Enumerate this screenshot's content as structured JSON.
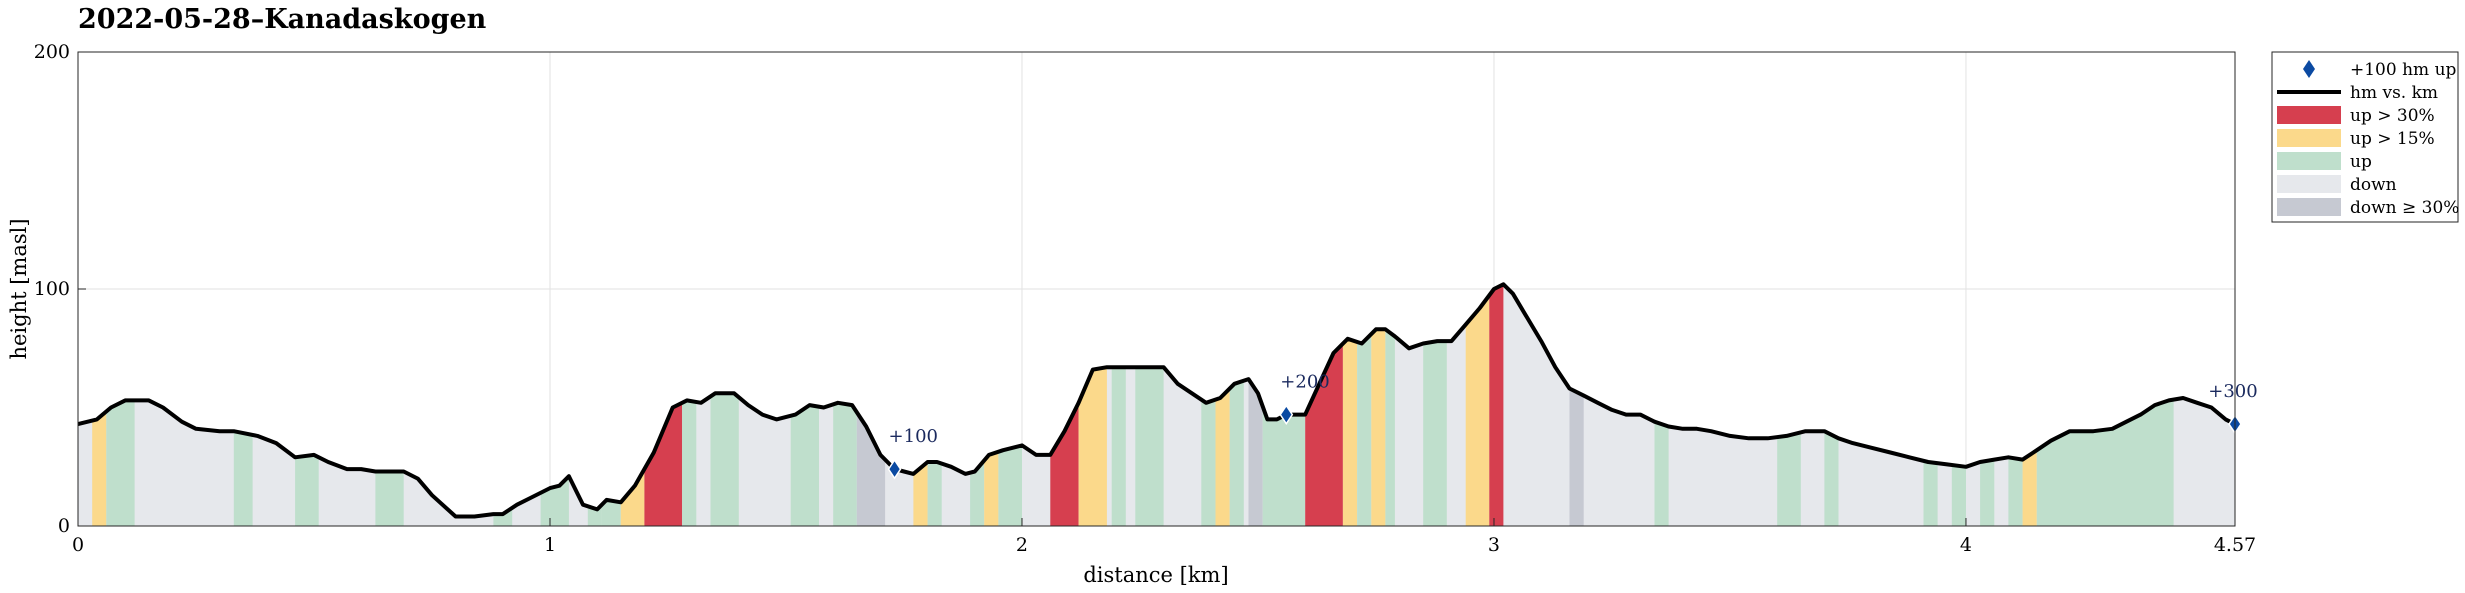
{
  "chart_data": {
    "type": "area",
    "title": "2022-05-28–Kanadaskogen",
    "xlabel": "distance [km]",
    "ylabel": "height [masl]",
    "xlim": [
      0,
      4.57
    ],
    "ylim": [
      0,
      200
    ],
    "x_ticks": [
      "0",
      "1",
      "2",
      "3",
      "4",
      "4.57"
    ],
    "y_ticks": [
      "0",
      "100",
      "200"
    ],
    "grid": true,
    "legend_position": "outside-right",
    "series": [
      {
        "name": "hm vs. km",
        "x": [
          0,
          0.04,
          0.07,
          0.1,
          0.15,
          0.18,
          0.22,
          0.25,
          0.3,
          0.33,
          0.38,
          0.42,
          0.46,
          0.5,
          0.53,
          0.57,
          0.6,
          0.63,
          0.66,
          0.69,
          0.72,
          0.75,
          0.8,
          0.84,
          0.88,
          0.9,
          0.93,
          0.96,
          1.0,
          1.02,
          1.04,
          1.07,
          1.1,
          1.12,
          1.15,
          1.18,
          1.22,
          1.26,
          1.29,
          1.32,
          1.35,
          1.39,
          1.42,
          1.45,
          1.48,
          1.52,
          1.55,
          1.58,
          1.61,
          1.64,
          1.67,
          1.7,
          1.73,
          1.75,
          1.77,
          1.8,
          1.82,
          1.85,
          1.88,
          1.9,
          1.93,
          1.96,
          2.0,
          2.03,
          2.06,
          2.09,
          2.12,
          2.15,
          2.18,
          2.21,
          2.25,
          2.3,
          2.33,
          2.36,
          2.39,
          2.42,
          2.45,
          2.48,
          2.5,
          2.52,
          2.54,
          2.56,
          2.58,
          2.6,
          2.63,
          2.66,
          2.69,
          2.72,
          2.75,
          2.77,
          2.79,
          2.82,
          2.85,
          2.88,
          2.91,
          2.94,
          2.97,
          3.0,
          3.02,
          3.04,
          3.07,
          3.1,
          3.13,
          3.16,
          3.19,
          3.22,
          3.25,
          3.28,
          3.31,
          3.34,
          3.37,
          3.4,
          3.43,
          3.46,
          3.5,
          3.54,
          3.58,
          3.62,
          3.66,
          3.7,
          3.73,
          3.76,
          3.8,
          3.84,
          3.88,
          3.92,
          3.96,
          4.0,
          4.03,
          4.06,
          4.09,
          4.12,
          4.15,
          4.18,
          4.22,
          4.27,
          4.31,
          4.34,
          4.37,
          4.4,
          4.43,
          4.46,
          4.49,
          4.52,
          4.55,
          4.57
        ],
        "y": [
          43,
          45,
          50,
          53,
          53,
          50,
          44,
          41,
          40,
          40,
          38,
          35,
          29,
          30,
          27,
          24,
          24,
          23,
          23,
          23,
          20,
          13,
          4,
          4,
          5,
          5,
          9,
          12,
          16,
          17,
          21,
          9,
          7,
          11,
          10,
          17,
          31,
          50,
          53,
          52,
          56,
          56,
          51,
          47,
          45,
          47,
          51,
          50,
          52,
          51,
          42,
          30,
          24,
          23,
          22,
          27,
          27,
          25,
          22,
          23,
          30,
          32,
          34,
          30,
          30,
          40,
          52,
          66,
          67,
          67,
          67,
          67,
          60,
          56,
          52,
          54,
          60,
          62,
          56,
          45,
          45,
          47,
          47,
          47,
          60,
          73,
          79,
          77,
          83,
          83,
          80,
          75,
          77,
          78,
          78,
          85,
          92,
          100,
          102,
          98,
          88,
          78,
          67,
          58,
          55,
          52,
          49,
          47,
          47,
          44,
          42,
          41,
          41,
          40,
          38,
          37,
          37,
          38,
          40,
          40,
          37,
          35,
          33,
          31,
          29,
          27,
          26,
          25,
          27,
          28,
          29,
          28,
          32,
          36,
          40,
          40,
          41,
          44,
          47,
          51,
          53,
          54,
          52,
          50,
          45,
          43
        ]
      }
    ],
    "bands": [
      {
        "x0": 0.03,
        "x1": 0.06,
        "class": "up > 15%"
      },
      {
        "x0": 0.06,
        "x1": 0.12,
        "class": "up"
      },
      {
        "x0": 0.33,
        "x1": 0.37,
        "class": "up"
      },
      {
        "x0": 0.46,
        "x1": 0.51,
        "class": "up"
      },
      {
        "x0": 0.63,
        "x1": 0.69,
        "class": "up"
      },
      {
        "x0": 0.88,
        "x1": 0.92,
        "class": "up"
      },
      {
        "x0": 0.98,
        "x1": 1.04,
        "class": "up"
      },
      {
        "x0": 1.08,
        "x1": 1.11,
        "class": "up"
      },
      {
        "x0": 1.11,
        "x1": 1.15,
        "class": "up"
      },
      {
        "x0": 1.15,
        "x1": 1.2,
        "class": "up > 15%"
      },
      {
        "x0": 1.2,
        "x1": 1.28,
        "class": "up > 30%"
      },
      {
        "x0": 1.28,
        "x1": 1.31,
        "class": "up"
      },
      {
        "x0": 1.34,
        "x1": 1.4,
        "class": "up"
      },
      {
        "x0": 1.51,
        "x1": 1.57,
        "class": "up"
      },
      {
        "x0": 1.6,
        "x1": 1.65,
        "class": "up"
      },
      {
        "x0": 1.65,
        "x1": 1.71,
        "class": "down ≥ 30%"
      },
      {
        "x0": 1.77,
        "x1": 1.8,
        "class": "up > 15%"
      },
      {
        "x0": 1.8,
        "x1": 1.83,
        "class": "up"
      },
      {
        "x0": 1.89,
        "x1": 1.92,
        "class": "up"
      },
      {
        "x0": 1.92,
        "x1": 1.95,
        "class": "up > 15%"
      },
      {
        "x0": 1.95,
        "x1": 2.0,
        "class": "up"
      },
      {
        "x0": 2.06,
        "x1": 2.12,
        "class": "up > 30%"
      },
      {
        "x0": 2.12,
        "x1": 2.18,
        "class": "up > 15%"
      },
      {
        "x0": 2.19,
        "x1": 2.22,
        "class": "up"
      },
      {
        "x0": 2.24,
        "x1": 2.3,
        "class": "up"
      },
      {
        "x0": 2.38,
        "x1": 2.41,
        "class": "up"
      },
      {
        "x0": 2.41,
        "x1": 2.44,
        "class": "up > 15%"
      },
      {
        "x0": 2.44,
        "x1": 2.47,
        "class": "up"
      },
      {
        "x0": 2.48,
        "x1": 2.51,
        "class": "down ≥ 30%"
      },
      {
        "x0": 2.51,
        "x1": 2.6,
        "class": "up"
      },
      {
        "x0": 2.6,
        "x1": 2.68,
        "class": "up > 30%"
      },
      {
        "x0": 2.68,
        "x1": 2.71,
        "class": "up > 15%"
      },
      {
        "x0": 2.71,
        "x1": 2.74,
        "class": "up"
      },
      {
        "x0": 2.74,
        "x1": 2.77,
        "class": "up > 15%"
      },
      {
        "x0": 2.77,
        "x1": 2.79,
        "class": "up"
      },
      {
        "x0": 2.85,
        "x1": 2.9,
        "class": "up"
      },
      {
        "x0": 2.94,
        "x1": 2.99,
        "class": "up > 15%"
      },
      {
        "x0": 2.99,
        "x1": 3.02,
        "class": "up > 30%"
      },
      {
        "x0": 3.16,
        "x1": 3.19,
        "class": "down ≥ 30%"
      },
      {
        "x0": 3.34,
        "x1": 3.37,
        "class": "up"
      },
      {
        "x0": 3.6,
        "x1": 3.65,
        "class": "up"
      },
      {
        "x0": 3.7,
        "x1": 3.73,
        "class": "up"
      },
      {
        "x0": 3.91,
        "x1": 3.94,
        "class": "up"
      },
      {
        "x0": 3.97,
        "x1": 4.0,
        "class": "up"
      },
      {
        "x0": 4.03,
        "x1": 4.06,
        "class": "up"
      },
      {
        "x0": 4.09,
        "x1": 4.12,
        "class": "up"
      },
      {
        "x0": 4.12,
        "x1": 4.15,
        "class": "up > 15%"
      },
      {
        "x0": 4.15,
        "x1": 4.44,
        "class": "up"
      }
    ],
    "markers": [
      {
        "x": 1.73,
        "y": 24,
        "label": "+100"
      },
      {
        "x": 2.56,
        "y": 47,
        "label": "+200"
      },
      {
        "x": 4.57,
        "y": 43,
        "label": "+300"
      }
    ],
    "legend": [
      {
        "label": "+100 hm up",
        "kind": "marker"
      },
      {
        "label": "hm vs. km",
        "kind": "line"
      },
      {
        "label": "up > 30%",
        "kind": "patch"
      },
      {
        "label": "up > 15%",
        "kind": "patch"
      },
      {
        "label": "up",
        "kind": "patch"
      },
      {
        "label": "down",
        "kind": "patch"
      },
      {
        "label": "down ≥ 30%",
        "kind": "patch"
      }
    ],
    "colors": {
      "up > 30%": "#d63f4f",
      "up > 15%": "#fbd98b",
      "up": "#bfdfcc",
      "down": "#e6e8ec",
      "down ≥ 30%": "#c6c9d2",
      "line": "#000000",
      "marker": "#0b4aa2",
      "grid": "#e2e2e2"
    }
  }
}
